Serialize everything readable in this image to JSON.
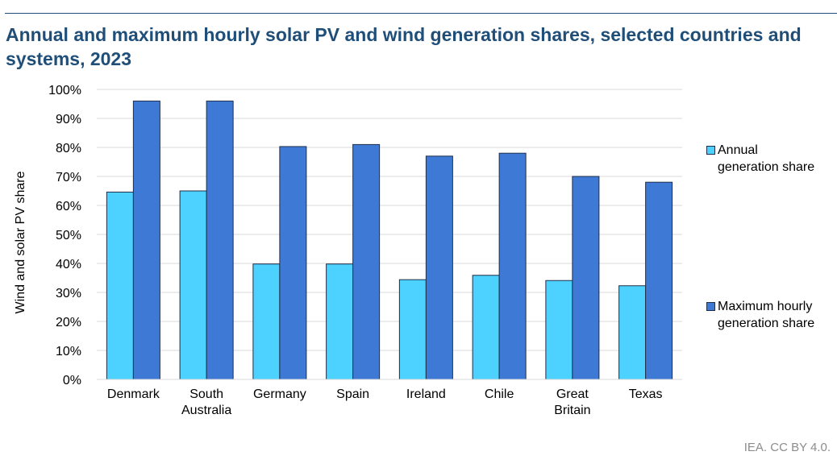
{
  "title": "Annual and maximum hourly solar PV and wind generation shares, selected countries and systems, 2023",
  "credit": "IEA. CC BY 4.0.",
  "colors": {
    "annual": "#4dd2ff",
    "maximum": "#3f79d6",
    "title": "#1f4e79",
    "bar_border": "#1f2f4a"
  },
  "chart_data": {
    "type": "bar",
    "categories": [
      "Denmark",
      "South\nAustralia",
      "Germany",
      "Spain",
      "Ireland",
      "Chile",
      "Great\nBritain",
      "Texas"
    ],
    "series": [
      {
        "name": "Annual\ngeneration share",
        "values": [
          64.6,
          65.0,
          39.8,
          39.8,
          34.4,
          35.9,
          34.1,
          32.3
        ]
      },
      {
        "name": "Maximum hourly\ngeneration share",
        "values": [
          96.0,
          96.0,
          80.3,
          81.0,
          77.0,
          78.0,
          70.0,
          68.0
        ]
      }
    ],
    "ylabel": "Wind and solar PV share",
    "xlabel": "",
    "ylim": [
      0,
      100
    ],
    "yticks": [
      "0%",
      "10%",
      "20%",
      "30%",
      "40%",
      "50%",
      "60%",
      "70%",
      "80%",
      "90%",
      "100%"
    ],
    "grid": true,
    "legend_position": "right"
  }
}
